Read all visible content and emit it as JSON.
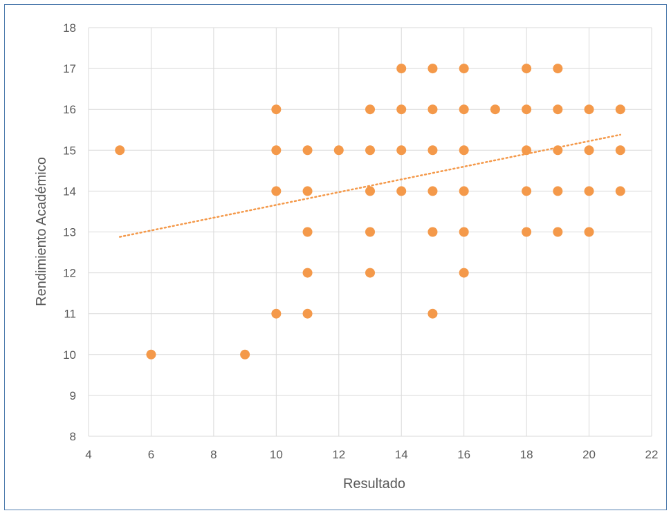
{
  "chart_data": {
    "type": "scatter",
    "title": "",
    "xlabel": "Resultado",
    "ylabel": "Rendimiento Académico",
    "xlim": [
      4,
      22
    ],
    "ylim": [
      8,
      18
    ],
    "x_ticks": [
      "4",
      "6",
      "8",
      "10",
      "12",
      "14",
      "16",
      "18",
      "20",
      "22"
    ],
    "y_ticks": [
      "8",
      "9",
      "10",
      "11",
      "12",
      "13",
      "14",
      "15",
      "16",
      "17",
      "18"
    ],
    "grid": true,
    "legend": "none",
    "marker_color": "#f4994a",
    "trendline": {
      "style": "dotted",
      "color": "#f4994a",
      "from": [
        5,
        12.88
      ],
      "to": [
        21,
        15.38
      ]
    },
    "points": [
      [
        5,
        15
      ],
      [
        6,
        10
      ],
      [
        9,
        10
      ],
      [
        10,
        16
      ],
      [
        10,
        15
      ],
      [
        10,
        14
      ],
      [
        10,
        11
      ],
      [
        11,
        15
      ],
      [
        11,
        14
      ],
      [
        11,
        13
      ],
      [
        11,
        12
      ],
      [
        11,
        11
      ],
      [
        12,
        15
      ],
      [
        13,
        16
      ],
      [
        13,
        15
      ],
      [
        13,
        14
      ],
      [
        13,
        13
      ],
      [
        13,
        12
      ],
      [
        14,
        17
      ],
      [
        14,
        16
      ],
      [
        14,
        15
      ],
      [
        14,
        14
      ],
      [
        15,
        17
      ],
      [
        15,
        16
      ],
      [
        15,
        15
      ],
      [
        15,
        14
      ],
      [
        15,
        13
      ],
      [
        15,
        11
      ],
      [
        16,
        17
      ],
      [
        16,
        16
      ],
      [
        16,
        15
      ],
      [
        16,
        14
      ],
      [
        16,
        13
      ],
      [
        16,
        12
      ],
      [
        17,
        16
      ],
      [
        18,
        17
      ],
      [
        18,
        16
      ],
      [
        18,
        15
      ],
      [
        18,
        14
      ],
      [
        18,
        13
      ],
      [
        19,
        17
      ],
      [
        19,
        16
      ],
      [
        19,
        15
      ],
      [
        19,
        14
      ],
      [
        19,
        13
      ],
      [
        20,
        16
      ],
      [
        20,
        15
      ],
      [
        20,
        14
      ],
      [
        20,
        13
      ],
      [
        21,
        16
      ],
      [
        21,
        15
      ],
      [
        21,
        14
      ]
    ]
  }
}
